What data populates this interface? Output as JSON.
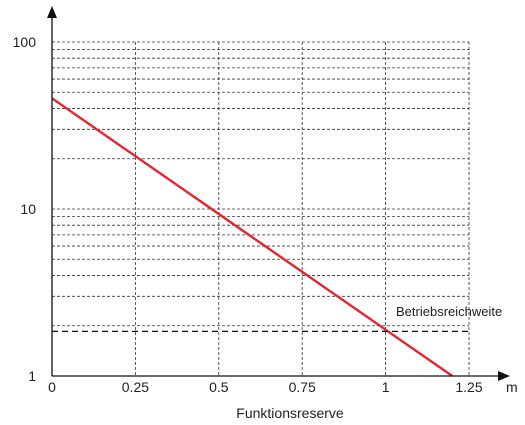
{
  "chart_data": {
    "type": "line",
    "title": "",
    "xlabel": "Funktionsreserve",
    "x_unit": "m",
    "ylabel": "",
    "yscale": "log",
    "xlim": [
      0,
      1.25
    ],
    "ylim": [
      1,
      100
    ],
    "x_ticks": [
      0,
      0.25,
      0.5,
      0.75,
      1,
      1.25
    ],
    "x_tick_labels": [
      "0",
      "0.25",
      "0.5",
      "0.75",
      "1",
      "1.25"
    ],
    "y_ticks": [
      1,
      10,
      100
    ],
    "y_tick_labels": [
      "1",
      "10",
      "100"
    ],
    "grid": true,
    "series": [
      {
        "color": "#e3262f",
        "x": [
          0,
          1.2
        ],
        "y": [
          46,
          1
        ]
      }
    ],
    "reference_line": {
      "label": "Betriebsreichweite",
      "y": 1.85,
      "style": "dashed"
    }
  }
}
